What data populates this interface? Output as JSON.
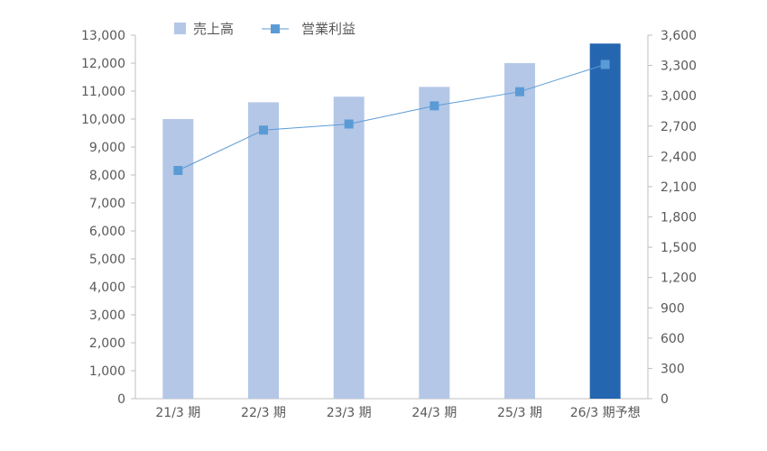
{
  "chart_data": {
    "type": "bar",
    "combo": "bar+line",
    "categories": [
      "21/3 期",
      "22/3 期",
      "23/3 期",
      "24/3 期",
      "25/3 期",
      "26/3 期予想"
    ],
    "series": [
      {
        "name": "売上高",
        "type": "bar",
        "axis": "left",
        "values": [
          10000,
          10600,
          10800,
          11150,
          12000,
          12700
        ]
      },
      {
        "name": "営業利益",
        "type": "line",
        "axis": "right",
        "values": [
          2260,
          2660,
          2720,
          2900,
          3040,
          3310
        ]
      }
    ],
    "left_axis": {
      "min": 0,
      "max": 13000,
      "step": 1000,
      "tick_labels": [
        "0",
        "1,000",
        "2,000",
        "3,000",
        "4,000",
        "5,000",
        "6,000",
        "7,000",
        "8,000",
        "9,000",
        "10,000",
        "11,000",
        "12,000",
        "13,000"
      ]
    },
    "right_axis": {
      "min": 0,
      "max": 3600,
      "step": 300,
      "tick_labels": [
        "0",
        "300",
        "600",
        "900",
        "1,200",
        "1,500",
        "1,800",
        "2,100",
        "2,400",
        "2,700",
        "3,000",
        "3,300",
        "3,600"
      ]
    },
    "highlight_category": "26/3 期予想",
    "legend_position": "top-left",
    "title": "",
    "xlabel": "",
    "ylabel": "",
    "grid": false
  },
  "colors": {
    "bar": "#b4c7e7",
    "bar_highlight": "#2566b0",
    "line": "#5b9bd5",
    "marker": "#5b9bd5",
    "axis": "#bfbfbf",
    "text": "#595959"
  },
  "legend": [
    {
      "label": "売上高",
      "icon": "bar-swatch-icon"
    },
    {
      "label": "営業利益",
      "icon": "line-marker-icon"
    }
  ]
}
